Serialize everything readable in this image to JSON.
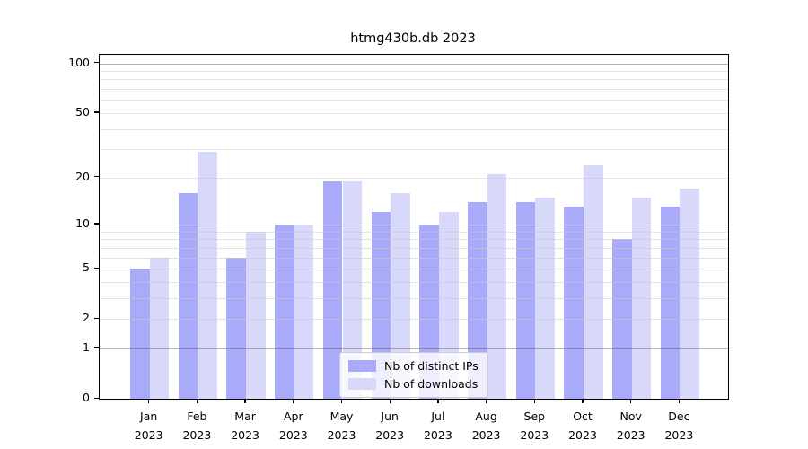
{
  "chart_data": {
    "type": "bar",
    "title": "htmg430b.db 2023",
    "xlabel": "",
    "ylabel": "",
    "scale": "log10(value+1)",
    "ylim": [
      0,
      113
    ],
    "grid": true,
    "legend_position": "bottom-center-inside",
    "categories": [
      "Jan",
      "Feb",
      "Mar",
      "Apr",
      "May",
      "Jun",
      "Jul",
      "Aug",
      "Sep",
      "Oct",
      "Nov",
      "Dec"
    ],
    "year_label": "2023",
    "yticks": [
      0,
      1,
      2,
      5,
      10,
      20,
      50,
      100
    ],
    "minor_gridlines": [
      2,
      3,
      4,
      5,
      6,
      7,
      8,
      9,
      20,
      30,
      40,
      50,
      60,
      70,
      80,
      90
    ],
    "major_gridlines": [
      1,
      10,
      100
    ],
    "series": [
      {
        "name": "Nb of distinct IPs",
        "color": "#aaaafa",
        "values": [
          5,
          16,
          6,
          10,
          19,
          12,
          10,
          14,
          14,
          13,
          8,
          13
        ]
      },
      {
        "name": "Nb of downloads",
        "color": "#d8d8fa",
        "values": [
          6,
          29,
          9,
          10,
          19,
          16,
          12,
          21,
          15,
          24,
          15,
          17
        ]
      }
    ]
  }
}
